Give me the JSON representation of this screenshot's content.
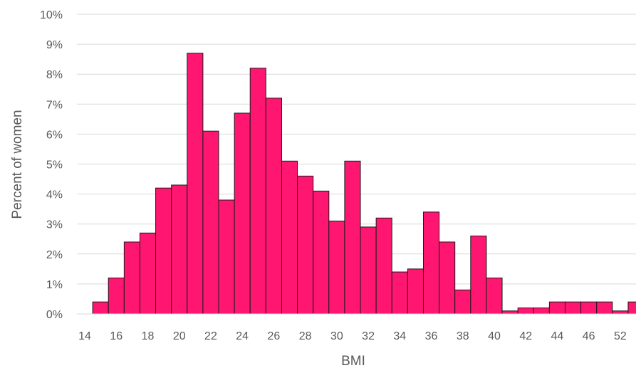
{
  "chart_data": {
    "type": "bar",
    "xlabel": "BMI",
    "ylabel": "Percent of women",
    "ylim": [
      0,
      10
    ],
    "y_unit": "%",
    "y_ticks": [
      "0%",
      "1%",
      "2%",
      "3%",
      "4%",
      "5%",
      "6%",
      "7%",
      "8%",
      "9%",
      "10%"
    ],
    "x_tick_labels": [
      "14",
      "16",
      "18",
      "20",
      "22",
      "24",
      "26",
      "28",
      "30",
      "32",
      "34",
      "36",
      "38",
      "40",
      "42",
      "44",
      "46",
      "52"
    ],
    "grid": "horizontal",
    "bar_color": "#FF1670",
    "categories": [
      "15",
      "16",
      "17",
      "18",
      "19",
      "20",
      "21",
      "22",
      "23",
      "24",
      "25",
      "26",
      "27",
      "28",
      "29",
      "30",
      "31",
      "32",
      "33",
      "34",
      "35",
      "36",
      "37",
      "38",
      "39",
      "40",
      "41",
      "42",
      "43",
      "44",
      "45",
      "46",
      "47",
      "52",
      "53"
    ],
    "values": [
      0.4,
      1.2,
      2.4,
      2.7,
      4.2,
      4.3,
      8.7,
      6.1,
      3.8,
      6.7,
      8.2,
      7.2,
      5.1,
      4.6,
      4.1,
      3.1,
      5.1,
      2.9,
      3.2,
      1.4,
      1.5,
      3.4,
      2.4,
      0.8,
      2.6,
      1.2,
      0.1,
      0.2,
      0.2,
      0.4,
      0.4,
      0.4,
      0.4,
      0.1,
      0.4
    ]
  }
}
